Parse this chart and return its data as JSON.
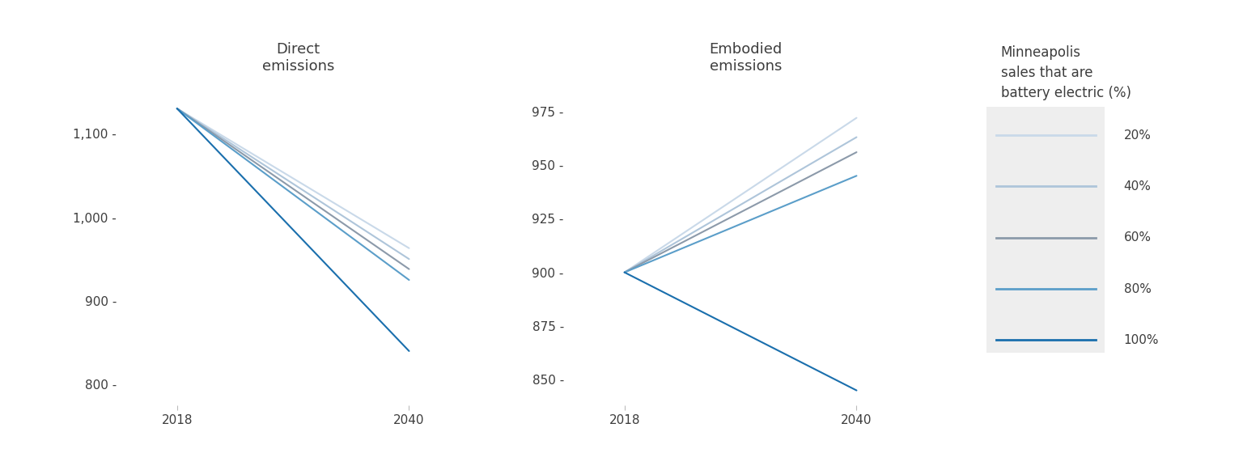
{
  "title_left": "Direct\nemissions",
  "title_right": "Embodied\nemissions",
  "legend_title": "Minneapolis\nsales that are\nbattery electric (%)",
  "years": [
    2018,
    2040
  ],
  "scenarios": [
    {
      "label": "20%",
      "color": "#c9d9e9",
      "direct_2018": 1130,
      "direct_2040": 963,
      "embodied_2018": 900,
      "embodied_2040": 972
    },
    {
      "label": "40%",
      "color": "#aec5da",
      "direct_2018": 1130,
      "direct_2040": 950,
      "embodied_2018": 900,
      "embodied_2040": 963
    },
    {
      "label": "60%",
      "color": "#8c9aaa",
      "direct_2018": 1130,
      "direct_2040": 938,
      "embodied_2018": 900,
      "embodied_2040": 956
    },
    {
      "label": "80%",
      "color": "#5b9ec9",
      "direct_2018": 1130,
      "direct_2040": 925,
      "embodied_2018": 900,
      "embodied_2040": 945
    },
    {
      "label": "100%",
      "color": "#1a6fad",
      "direct_2018": 1130,
      "direct_2040": 840,
      "embodied_2018": 900,
      "embodied_2040": 845
    }
  ],
  "direct_ylim": [
    775,
    1165
  ],
  "direct_yticks": [
    800,
    900,
    1000,
    1100
  ],
  "embodied_ylim": [
    838,
    990
  ],
  "embodied_yticks": [
    850,
    875,
    900,
    925,
    950,
    975
  ],
  "background_color": "#ffffff",
  "text_color": "#3d3d3d",
  "axis_color": "#bbbbbb"
}
